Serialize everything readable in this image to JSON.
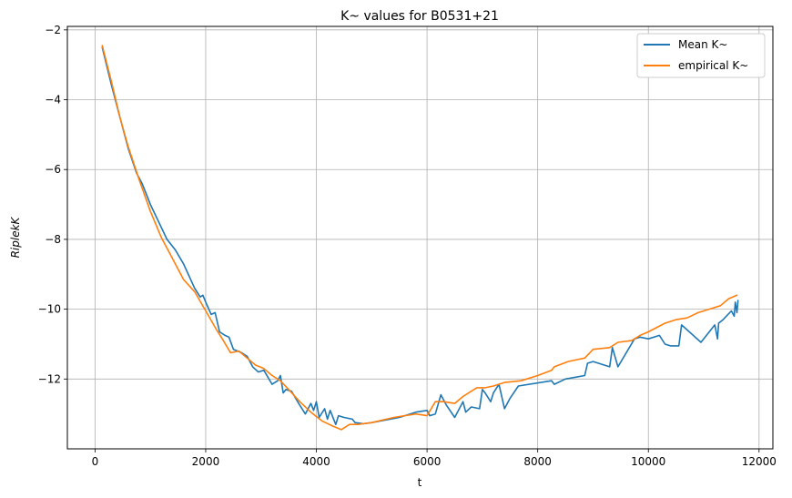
{
  "chart_data": {
    "type": "line",
    "title": "K~ values for B0531+21",
    "xlabel": "t",
    "ylabel": "RiplekK",
    "xlim": [
      -500,
      12250
    ],
    "ylim": [
      -14.0,
      -1.9
    ],
    "x_ticks": [
      0,
      2000,
      4000,
      6000,
      8000,
      10000,
      12000
    ],
    "x_tick_labels": [
      "0",
      "2000",
      "4000",
      "6000",
      "8000",
      "10000",
      "12000"
    ],
    "y_ticks": [
      -12,
      -10,
      -8,
      -6,
      -4,
      -2
    ],
    "y_tick_labels": [
      "−12",
      "−10",
      "−8",
      "−6",
      "−4",
      "−2"
    ],
    "grid": true,
    "legend": "top-right",
    "colors": {
      "mean": "#1f77b4",
      "empirical": "#ff7f0e"
    },
    "series": [
      {
        "name": "Mean K~",
        "color": "#1f77b4",
        "points": [
          [
            130,
            -2.5
          ],
          [
            300,
            -3.6
          ],
          [
            450,
            -4.5
          ],
          [
            600,
            -5.4
          ],
          [
            750,
            -6.1
          ],
          [
            850,
            -6.4
          ],
          [
            1000,
            -7.0
          ],
          [
            1150,
            -7.5
          ],
          [
            1300,
            -8.0
          ],
          [
            1450,
            -8.3
          ],
          [
            1600,
            -8.7
          ],
          [
            1800,
            -9.4
          ],
          [
            1900,
            -9.65
          ],
          [
            1950,
            -9.6
          ],
          [
            2000,
            -9.8
          ],
          [
            2100,
            -10.15
          ],
          [
            2170,
            -10.1
          ],
          [
            2250,
            -10.65
          ],
          [
            2350,
            -10.75
          ],
          [
            2420,
            -10.8
          ],
          [
            2500,
            -11.15
          ],
          [
            2580,
            -11.2
          ],
          [
            2650,
            -11.25
          ],
          [
            2750,
            -11.35
          ],
          [
            2850,
            -11.65
          ],
          [
            2950,
            -11.8
          ],
          [
            3050,
            -11.75
          ],
          [
            3200,
            -12.15
          ],
          [
            3300,
            -12.05
          ],
          [
            3350,
            -11.9
          ],
          [
            3400,
            -12.4
          ],
          [
            3450,
            -12.3
          ],
          [
            3550,
            -12.35
          ],
          [
            3700,
            -12.75
          ],
          [
            3800,
            -13.0
          ],
          [
            3900,
            -12.7
          ],
          [
            3950,
            -12.9
          ],
          [
            4000,
            -12.65
          ],
          [
            4050,
            -13.1
          ],
          [
            4150,
            -12.85
          ],
          [
            4200,
            -13.15
          ],
          [
            4250,
            -12.9
          ],
          [
            4350,
            -13.3
          ],
          [
            4400,
            -13.05
          ],
          [
            4500,
            -13.1
          ],
          [
            4650,
            -13.15
          ],
          [
            4700,
            -13.25
          ],
          [
            4850,
            -13.28
          ],
          [
            5000,
            -13.25
          ],
          [
            5500,
            -13.1
          ],
          [
            5800,
            -12.95
          ],
          [
            6000,
            -12.9
          ],
          [
            6050,
            -13.05
          ],
          [
            6150,
            -13.0
          ],
          [
            6250,
            -12.45
          ],
          [
            6350,
            -12.75
          ],
          [
            6500,
            -13.1
          ],
          [
            6650,
            -12.65
          ],
          [
            6700,
            -12.95
          ],
          [
            6800,
            -12.8
          ],
          [
            6950,
            -12.85
          ],
          [
            7000,
            -12.3
          ],
          [
            7050,
            -12.4
          ],
          [
            7150,
            -12.65
          ],
          [
            7200,
            -12.4
          ],
          [
            7300,
            -12.15
          ],
          [
            7400,
            -12.85
          ],
          [
            7500,
            -12.55
          ],
          [
            7650,
            -12.2
          ],
          [
            8250,
            -12.05
          ],
          [
            8300,
            -12.15
          ],
          [
            8500,
            -12.0
          ],
          [
            8850,
            -11.9
          ],
          [
            8900,
            -11.55
          ],
          [
            9000,
            -11.5
          ],
          [
            9300,
            -11.65
          ],
          [
            9350,
            -11.1
          ],
          [
            9450,
            -11.65
          ],
          [
            9750,
            -10.85
          ],
          [
            9850,
            -10.8
          ],
          [
            10000,
            -10.85
          ],
          [
            10200,
            -10.75
          ],
          [
            10300,
            -11.0
          ],
          [
            10400,
            -11.05
          ],
          [
            10550,
            -11.05
          ],
          [
            10600,
            -10.45
          ],
          [
            10950,
            -10.95
          ],
          [
            11100,
            -10.65
          ],
          [
            11200,
            -10.45
          ],
          [
            11250,
            -10.85
          ],
          [
            11270,
            -10.4
          ],
          [
            11350,
            -10.3
          ],
          [
            11500,
            -10.05
          ],
          [
            11550,
            -10.2
          ],
          [
            11570,
            -9.8
          ],
          [
            11600,
            -10.1
          ],
          [
            11620,
            -9.75
          ]
        ]
      },
      {
        "name": "empirical K~",
        "color": "#ff7f0e",
        "points": [
          [
            130,
            -2.45
          ],
          [
            300,
            -3.5
          ],
          [
            450,
            -4.5
          ],
          [
            600,
            -5.35
          ],
          [
            800,
            -6.3
          ],
          [
            1000,
            -7.2
          ],
          [
            1200,
            -7.95
          ],
          [
            1400,
            -8.55
          ],
          [
            1600,
            -9.15
          ],
          [
            1800,
            -9.5
          ],
          [
            2000,
            -10.05
          ],
          [
            2200,
            -10.6
          ],
          [
            2300,
            -10.85
          ],
          [
            2450,
            -11.25
          ],
          [
            2600,
            -11.2
          ],
          [
            2750,
            -11.4
          ],
          [
            2900,
            -11.6
          ],
          [
            3050,
            -11.7
          ],
          [
            3200,
            -11.9
          ],
          [
            3350,
            -12.05
          ],
          [
            3500,
            -12.3
          ],
          [
            3700,
            -12.65
          ],
          [
            3900,
            -12.95
          ],
          [
            4100,
            -13.2
          ],
          [
            4300,
            -13.35
          ],
          [
            4450,
            -13.45
          ],
          [
            4600,
            -13.3
          ],
          [
            4750,
            -13.3
          ],
          [
            5000,
            -13.25
          ],
          [
            5400,
            -13.1
          ],
          [
            5800,
            -13.0
          ],
          [
            6000,
            -13.05
          ],
          [
            6150,
            -12.65
          ],
          [
            6300,
            -12.65
          ],
          [
            6500,
            -12.7
          ],
          [
            6650,
            -12.5
          ],
          [
            6800,
            -12.35
          ],
          [
            6900,
            -12.25
          ],
          [
            7050,
            -12.25
          ],
          [
            7200,
            -12.2
          ],
          [
            7400,
            -12.1
          ],
          [
            7700,
            -12.05
          ],
          [
            8000,
            -11.9
          ],
          [
            8250,
            -11.75
          ],
          [
            8300,
            -11.65
          ],
          [
            8550,
            -11.5
          ],
          [
            8850,
            -11.4
          ],
          [
            9000,
            -11.15
          ],
          [
            9300,
            -11.1
          ],
          [
            9450,
            -10.95
          ],
          [
            9700,
            -10.9
          ],
          [
            9850,
            -10.75
          ],
          [
            10000,
            -10.65
          ],
          [
            10300,
            -10.4
          ],
          [
            10500,
            -10.3
          ],
          [
            10700,
            -10.25
          ],
          [
            10900,
            -10.1
          ],
          [
            11100,
            -10.0
          ],
          [
            11300,
            -9.9
          ],
          [
            11450,
            -9.7
          ],
          [
            11600,
            -9.6
          ]
        ]
      }
    ]
  }
}
